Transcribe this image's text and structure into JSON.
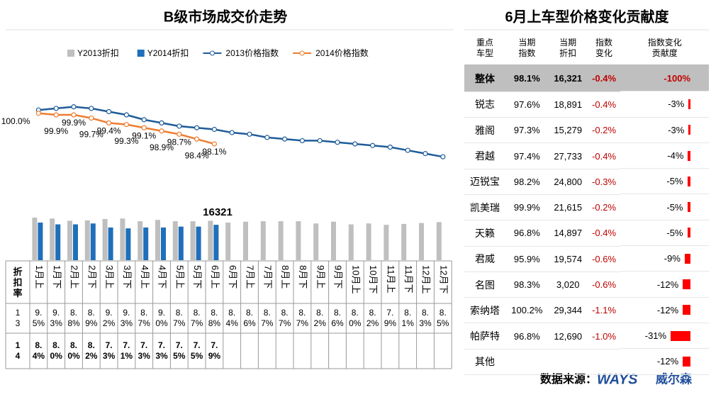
{
  "chart_data": {
    "type": "combo",
    "title": "B级市场成交价走势",
    "annotation": "16321",
    "row_header": "折扣率",
    "categories": [
      "1月上",
      "1月下",
      "2月上",
      "2月下",
      "3月上",
      "3月下",
      "4月上",
      "4月下",
      "5月上",
      "5月下",
      "6月上",
      "6月下",
      "7月上",
      "7月下",
      "8月上",
      "8月下",
      "9月上",
      "9月下",
      "10月上",
      "10月下",
      "11月上",
      "11月下",
      "12月上",
      "12月下"
    ],
    "ylim": [
      0,
      9.5
    ],
    "y2lim": [
      97,
      101
    ],
    "series": [
      {
        "name": "Y2013折扣",
        "row_label": "13",
        "type": "bar",
        "color": "#bfbfbf",
        "values": [
          9.5,
          9.3,
          8.8,
          8.9,
          9.2,
          9.3,
          8.7,
          9.0,
          8.7,
          8.7,
          8.8,
          8.4,
          8.6,
          8.7,
          8.7,
          8.7,
          8.2,
          8.6,
          8.0,
          8.2,
          7.9,
          8.1,
          8.3,
          8.5
        ],
        "value_labels": [
          "9.5%",
          "9.3%",
          "8.8%",
          "8.9%",
          "9.2%",
          "9.3%",
          "8.7%",
          "9.0%",
          "8.7%",
          "8.7%",
          "8.8%",
          "8.4%",
          "8.6%",
          "8.7%",
          "8.7%",
          "8.7%",
          "8.2%",
          "8.6%",
          "8.0%",
          "8.2%",
          "7.9%",
          "8.1%",
          "8.3%",
          "8.5%"
        ]
      },
      {
        "name": "Y2014折扣",
        "row_label": "14",
        "type": "bar",
        "color": "#1f6fba",
        "values": [
          8.4,
          8.0,
          8.0,
          8.2,
          7.3,
          7.1,
          7.3,
          7.3,
          7.5,
          7.5,
          7.9,
          null,
          null,
          null,
          null,
          null,
          null,
          null,
          null,
          null,
          null,
          null,
          null,
          null
        ],
        "value_labels": [
          "8.4%",
          "8.0%",
          "8.0%",
          "8.2%",
          "7.3%",
          "7.1%",
          "7.3%",
          "7.3%",
          "7.5%",
          "7.5%",
          "7.9%",
          null,
          null,
          null,
          null,
          null,
          null,
          null,
          null,
          null,
          null,
          null,
          null,
          null
        ]
      },
      {
        "name": "2013价格指数",
        "type": "line",
        "axis": "y2",
        "color": "#1f5c99",
        "values": [
          100.2,
          100.3,
          100.4,
          100.3,
          100.1,
          99.9,
          99.6,
          99.4,
          99.2,
          99.1,
          99.0,
          98.8,
          98.7,
          98.5,
          98.4,
          98.3,
          98.3,
          98.2,
          98.1,
          98.0,
          97.9,
          97.7,
          97.5,
          97.3
        ]
      },
      {
        "name": "2014价格指数",
        "type": "line",
        "axis": "y2",
        "color": "#ed7d31",
        "values": [
          100.0,
          99.9,
          99.9,
          99.7,
          99.4,
          99.3,
          99.1,
          98.9,
          98.7,
          98.4,
          98.1,
          null,
          null,
          null,
          null,
          null,
          null,
          null,
          null,
          null,
          null,
          null,
          null,
          null
        ],
        "value_labels": [
          "100.0%",
          "99.9%",
          "99.9%",
          "99.7%",
          "99.4%",
          "99.3%",
          "99.1%",
          "98.9%",
          "98.7%",
          "98.4%",
          "98.1%",
          null,
          null,
          null,
          null,
          null,
          null,
          null,
          null,
          null,
          null,
          null,
          null,
          null
        ]
      }
    ]
  },
  "table": {
    "title": "6月上车型价格变化贡献度",
    "header": [
      "重点车型",
      "当期指数",
      "当期折扣",
      "指数变化",
      "指数变化贡献度"
    ],
    "rows": [
      [
        "整体",
        "98.1%",
        "16,321",
        "-0.4%",
        "-100%"
      ],
      [
        "锐志",
        "97.6%",
        "18,891",
        "-0.4%",
        "-3%"
      ],
      [
        "雅阁",
        "97.3%",
        "15,279",
        "-0.2%",
        "-3%"
      ],
      [
        "君越",
        "97.4%",
        "27,733",
        "-0.4%",
        "-4%"
      ],
      [
        "迈锐宝",
        "98.2%",
        "24,800",
        "-0.3%",
        "-5%"
      ],
      [
        "凯美瑞",
        "99.9%",
        "21,615",
        "-0.2%",
        "-5%"
      ],
      [
        "天籁",
        "96.8%",
        "14,897",
        "-0.4%",
        "-5%"
      ],
      [
        "君威",
        "95.9%",
        "19,574",
        "-0.6%",
        "-9%"
      ],
      [
        "名图",
        "98.3%",
        "3,020",
        "-0.6%",
        "-12%"
      ],
      [
        "索纳塔",
        "100.2%",
        "29,344",
        "-1.1%",
        "-12%"
      ],
      [
        "帕萨特",
        "96.8%",
        "12,690",
        "-1.0%",
        "-31%"
      ],
      [
        "其他",
        "",
        "",
        "",
        "-12%"
      ]
    ]
  },
  "footer": {
    "source": "数据来源：",
    "logo": "WAYS",
    "brand": "威尔森"
  }
}
